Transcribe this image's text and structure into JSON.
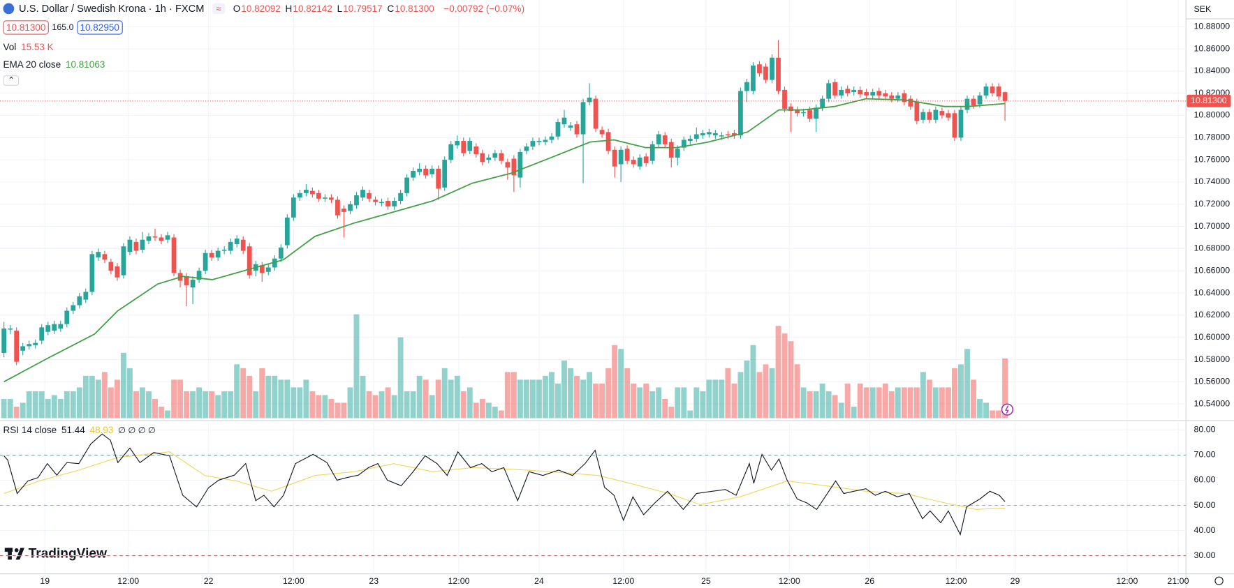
{
  "title": "U.S. Dollar / Swedish Krona · 1h · FXCM",
  "ohlc": [
    {
      "key": "O",
      "value": "10.82092"
    },
    {
      "key": "H",
      "value": "10.82142"
    },
    {
      "key": "L",
      "value": "10.79517"
    },
    {
      "key": "C",
      "value": "10.81300"
    }
  ],
  "change": "−0.00792 (−0.07%)",
  "sell": "10.81300",
  "spread": "165.0",
  "buy": "10.82950",
  "currency": "SEK",
  "logo": "TradingView",
  "chart_data": {
    "type": "candlestick",
    "up_color": "#26a69a",
    "down_color": "#ef5350",
    "xlim": [
      -0.625,
      187.75
    ],
    "xticks": [
      {
        "value": 6.5,
        "label": "19"
      },
      {
        "value": 19.75,
        "label": "12:00"
      },
      {
        "value": 32.5,
        "label": "22"
      },
      {
        "value": 46,
        "label": "12:00"
      },
      {
        "value": 58.75,
        "label": "23"
      },
      {
        "value": 72.25,
        "label": "12:00"
      },
      {
        "value": 85,
        "label": "24"
      },
      {
        "value": 98.4,
        "label": "12:00"
      },
      {
        "value": 111.5,
        "label": "25"
      },
      {
        "value": 124.75,
        "label": "12:00"
      },
      {
        "value": 137.5,
        "label": "26"
      },
      {
        "value": 151.25,
        "label": "12:00"
      },
      {
        "value": 160.6,
        "label": "29"
      },
      {
        "value": 178.4,
        "label": "12:00"
      },
      {
        "value": 186.5,
        "label": "21:00"
      }
    ],
    "ylim": [
      10.5272,
      10.904
    ],
    "yticks": [
      {
        "value": 10.88,
        "label": "10.88000"
      },
      {
        "value": 10.86,
        "label": "10.86000"
      },
      {
        "value": 10.84,
        "label": "10.84000"
      },
      {
        "value": 10.82,
        "label": "10.82000"
      },
      {
        "value": 10.8,
        "label": "10.80000"
      },
      {
        "value": 10.78,
        "label": "10.78000"
      },
      {
        "value": 10.76,
        "label": "10.76000"
      },
      {
        "value": 10.74,
        "label": "10.74000"
      },
      {
        "value": 10.72,
        "label": "10.72000"
      },
      {
        "value": 10.7,
        "label": "10.70000"
      },
      {
        "value": 10.68,
        "label": "10.68000"
      },
      {
        "value": 10.66,
        "label": "10.66000"
      },
      {
        "value": 10.64,
        "label": "10.64000"
      },
      {
        "value": 10.62,
        "label": "10.62000"
      },
      {
        "value": 10.6,
        "label": "10.60000"
      },
      {
        "value": 10.58,
        "label": "10.58000"
      },
      {
        "value": 10.56,
        "label": "10.56000"
      },
      {
        "value": 10.54,
        "label": "10.54000"
      }
    ],
    "current_price": {
      "value": 10.813,
      "label": "10.81300"
    },
    "open": [
      10.586,
      10.607,
      10.606,
      10.588,
      10.592,
      10.593,
      10.597,
      10.605,
      10.606,
      10.608,
      10.612,
      10.624,
      10.629,
      10.634,
      10.641,
      10.672,
      10.675,
      10.668,
      10.664,
      10.656,
      10.677,
      10.686,
      10.679,
      10.687,
      10.691,
      10.69,
      10.688,
      10.69,
      10.658,
      10.655,
      10.645,
      10.652,
      10.66,
      10.676,
      10.672,
      10.678,
      10.678,
      10.684,
      10.688,
      10.682,
      10.66,
      10.665,
      10.659,
      10.663,
      10.671,
      10.683,
      10.708,
      10.726,
      10.73,
      10.732,
      10.73,
      10.725,
      10.726,
      10.724,
      10.716,
      10.714,
      10.719,
      10.726,
      10.73,
      10.724,
      10.721,
      10.723,
      10.718,
      10.723,
      10.73,
      10.744,
      10.749,
      10.752,
      10.747,
      10.752,
      10.735,
      10.76,
      10.773,
      10.777,
      10.768,
      10.772,
      10.766,
      10.76,
      10.762,
      10.766,
      10.758,
      10.761,
      10.744,
      10.768,
      10.772,
      10.776,
      10.776,
      10.778,
      10.781,
      10.792,
      10.789,
      10.792,
      10.783,
      10.812,
      10.815,
      10.787,
      10.785,
      10.769,
      10.756,
      10.77,
      10.76,
      10.754,
      10.763,
      10.759,
      10.774,
      10.782,
      10.776,
      10.762,
      10.771,
      10.777,
      10.779,
      10.782,
      10.783,
      10.782,
      10.781,
      10.783,
      10.784,
      10.782,
      10.822,
      10.822,
      10.846,
      10.844,
      10.832,
      10.852,
      10.823,
      10.808,
      10.805,
      10.802,
      10.805,
      10.797,
      10.807,
      10.815,
      10.83,
      10.818,
      10.824,
      10.821,
      10.823,
      10.821,
      10.818,
      10.822,
      10.82,
      10.818,
      10.815,
      10.82,
      10.815,
      10.812,
      10.796,
      10.803,
      10.796,
      10.804,
      10.802,
      10.802,
      10.78,
      10.805,
      10.815,
      10.81,
      10.818,
      10.826,
      10.826,
      10.82092
    ],
    "high": [
      10.614,
      10.611,
      10.609,
      10.595,
      10.597,
      10.598,
      10.612,
      10.614,
      10.615,
      10.615,
      10.627,
      10.632,
      10.64,
      10.644,
      10.678,
      10.68,
      10.678,
      10.671,
      10.667,
      10.685,
      10.691,
      10.689,
      10.695,
      10.694,
      10.698,
      10.693,
      10.695,
      10.693,
      10.661,
      10.658,
      10.655,
      10.663,
      10.679,
      10.679,
      10.681,
      10.682,
      10.689,
      10.692,
      10.691,
      10.685,
      10.669,
      10.668,
      10.666,
      10.674,
      10.684,
      10.711,
      10.729,
      10.733,
      10.738,
      10.735,
      10.733,
      10.729,
      10.729,
      10.727,
      10.719,
      10.723,
      10.731,
      10.736,
      10.733,
      10.727,
      10.725,
      10.726,
      10.726,
      10.733,
      10.747,
      10.753,
      10.757,
      10.755,
      10.755,
      10.755,
      10.763,
      10.777,
      10.782,
      10.78,
      10.78,
      10.775,
      10.769,
      10.765,
      10.769,
      10.769,
      10.761,
      10.764,
      10.77,
      10.775,
      10.78,
      10.78,
      10.781,
      10.784,
      10.797,
      10.805,
      10.794,
      10.795,
      10.815,
      10.829,
      10.818,
      10.79,
      10.788,
      10.772,
      10.772,
      10.773,
      10.763,
      10.765,
      10.766,
      10.777,
      10.786,
      10.785,
      10.779,
      10.773,
      10.781,
      10.782,
      10.789,
      10.787,
      10.788,
      10.787,
      10.785,
      10.786,
      10.787,
      10.825,
      10.833,
      10.848,
      10.849,
      10.847,
      10.855,
      10.868,
      10.826,
      10.811,
      10.808,
      10.806,
      10.808,
      10.81,
      10.818,
      10.832,
      10.833,
      10.826,
      10.827,
      10.826,
      10.826,
      10.824,
      10.824,
      10.825,
      10.823,
      10.821,
      10.821,
      10.823,
      10.818,
      10.815,
      10.806,
      10.806,
      10.808,
      10.807,
      10.805,
      10.805,
      10.808,
      10.818,
      10.818,
      10.821,
      10.829,
      10.829,
      10.829,
      10.82142
    ],
    "low": [
      10.582,
      10.603,
      10.575,
      10.584,
      10.589,
      10.59,
      10.594,
      10.602,
      10.603,
      10.605,
      10.609,
      10.621,
      10.626,
      10.631,
      10.638,
      10.669,
      10.667,
      10.657,
      10.651,
      10.653,
      10.674,
      10.675,
      10.676,
      10.684,
      10.687,
      10.684,
      10.685,
      10.655,
      10.645,
      10.628,
      10.63,
      10.649,
      10.657,
      10.669,
      10.669,
      10.675,
      10.675,
      10.681,
      10.675,
      10.653,
      10.655,
      10.65,
      10.656,
      10.66,
      10.668,
      10.68,
      10.705,
      10.723,
      10.727,
      10.726,
      10.722,
      10.722,
      10.721,
      10.707,
      10.69,
      10.711,
      10.716,
      10.723,
      10.722,
      10.719,
      10.718,
      10.715,
      10.715,
      10.72,
      10.727,
      10.741,
      10.746,
      10.743,
      10.744,
      10.724,
      10.732,
      10.757,
      10.77,
      10.763,
      10.765,
      10.762,
      10.755,
      10.757,
      10.759,
      10.756,
      10.742,
      10.731,
      10.735,
      10.765,
      10.769,
      10.773,
      10.773,
      10.775,
      10.778,
      10.789,
      10.786,
      10.78,
      10.739,
      10.809,
      10.785,
      10.78,
      10.765,
      10.744,
      10.74,
      10.756,
      10.753,
      10.751,
      10.754,
      10.756,
      10.771,
      10.771,
      10.753,
      10.755,
      10.768,
      10.774,
      10.776,
      10.779,
      10.78,
      10.779,
      10.778,
      10.779,
      10.779,
      10.779,
      10.812,
      10.819,
      10.835,
      10.829,
      10.829,
      10.819,
      10.803,
      10.785,
      10.799,
      10.799,
      10.794,
      10.785,
      10.804,
      10.812,
      10.815,
      10.815,
      10.817,
      10.818,
      10.816,
      10.815,
      10.815,
      10.815,
      10.814,
      10.812,
      10.812,
      10.809,
      10.805,
      10.792,
      10.793,
      10.793,
      10.793,
      10.797,
      10.795,
      10.777,
      10.777,
      10.802,
      10.806,
      10.807,
      10.815,
      10.817,
      10.814,
      10.79517
    ],
    "close": [
      10.608,
      10.608,
      10.578,
      10.592,
      10.594,
      10.595,
      10.609,
      10.611,
      10.612,
      10.612,
      10.624,
      10.629,
      10.637,
      10.641,
      10.675,
      10.677,
      10.67,
      10.66,
      10.654,
      10.682,
      10.688,
      10.678,
      10.688,
      10.691,
      10.69,
      10.687,
      10.692,
      10.658,
      10.651,
      10.647,
      10.652,
      10.66,
      10.676,
      10.672,
      10.678,
      10.679,
      10.686,
      10.689,
      10.678,
      10.656,
      10.666,
      10.658,
      10.663,
      10.671,
      10.681,
      10.708,
      10.726,
      10.73,
      10.733,
      10.729,
      10.725,
      10.726,
      10.724,
      10.71,
      10.713,
      10.72,
      10.728,
      10.733,
      10.725,
      10.722,
      10.722,
      10.718,
      10.723,
      10.73,
      10.744,
      10.75,
      10.752,
      10.746,
      10.752,
      10.734,
      10.76,
      10.774,
      10.777,
      10.766,
      10.777,
      10.765,
      10.758,
      10.762,
      10.766,
      10.759,
      10.753,
      10.746,
      10.767,
      10.772,
      10.777,
      10.777,
      10.778,
      10.781,
      10.794,
      10.798,
      10.791,
      10.783,
      10.812,
      10.816,
      10.788,
      10.783,
      10.768,
      10.754,
      10.769,
      10.759,
      10.756,
      10.762,
      10.757,
      10.774,
      10.783,
      10.774,
      10.762,
      10.77,
      10.778,
      10.779,
      10.783,
      10.784,
      10.785,
      10.784,
      10.782,
      10.782,
      10.782,
      10.822,
      10.83,
      10.845,
      10.838,
      10.832,
      10.852,
      10.822,
      10.806,
      10.804,
      10.802,
      10.803,
      10.797,
      10.807,
      10.815,
      10.829,
      10.818,
      10.823,
      10.82,
      10.823,
      10.819,
      10.818,
      10.821,
      10.818,
      10.817,
      10.815,
      10.818,
      10.812,
      10.808,
      10.795,
      10.803,
      10.796,
      10.805,
      10.8,
      10.798,
      10.78,
      10.805,
      10.815,
      10.809,
      10.818,
      10.826,
      10.82,
      10.817,
      10.813
    ],
    "volume": {
      "name": "Vol",
      "last_label": "15.53 K",
      "ylim": [
        0,
        108.7
      ],
      "values": [
        5,
        5,
        3,
        4,
        7,
        7,
        7,
        5,
        6,
        5,
        7,
        7,
        8,
        11,
        11,
        10,
        12,
        8,
        10,
        17,
        13,
        7,
        8,
        7,
        5,
        3,
        2,
        10,
        10,
        7,
        7,
        8,
        7,
        7,
        6,
        7,
        7,
        14,
        13,
        11,
        7,
        13,
        11,
        11,
        10,
        10,
        8,
        8,
        10,
        7,
        6,
        6,
        5,
        4,
        4,
        8,
        27,
        11,
        7,
        6,
        7,
        8,
        6,
        21,
        7,
        7,
        11,
        10,
        6,
        10,
        13,
        10,
        11,
        7,
        8,
        4,
        5,
        4,
        3,
        2,
        12,
        12,
        10,
        10,
        10,
        10,
        11,
        12,
        9,
        15,
        13,
        11,
        10,
        12,
        9,
        9,
        13,
        19,
        18,
        13,
        9,
        8,
        9,
        7,
        8,
        5,
        3,
        8,
        8,
        2,
        8,
        7,
        10,
        10,
        10,
        13,
        9,
        12,
        15,
        19,
        12,
        14,
        13,
        24,
        22,
        20,
        14,
        8,
        7,
        7,
        9,
        7,
        6,
        4,
        9,
        3,
        9,
        8,
        8,
        8,
        9,
        7,
        8,
        8,
        8,
        8,
        12,
        10,
        8,
        8,
        8,
        13,
        14,
        18,
        10,
        5,
        4,
        2,
        2,
        15.53
      ]
    },
    "ema": {
      "name": "EMA 20 close",
      "color": "#43a047",
      "x": [
        0,
        6.9,
        14.4,
        18.1,
        24.4,
        28.4,
        33.1,
        38.1,
        44.4,
        49.4,
        55.6,
        61.9,
        68.1,
        74.4,
        80.6,
        86.9,
        93.1,
        96.9,
        101.9,
        106.9,
        111.9,
        118.1,
        123.1,
        126.9,
        131.9,
        136.9,
        143.1,
        149.4,
        153.1,
        159
      ],
      "values": [
        10.56,
        10.581,
        10.603,
        10.624,
        10.648,
        10.655,
        10.652,
        10.66,
        10.67,
        10.691,
        10.703,
        10.713,
        10.723,
        10.739,
        10.748,
        10.762,
        10.776,
        10.778,
        10.771,
        10.771,
        10.776,
        10.785,
        10.805,
        10.805,
        10.808,
        10.815,
        10.814,
        10.808,
        10.808,
        10.81063
      ]
    },
    "rsi": {
      "name": "RSI 14 close",
      "color": "#131722",
      "extra": "∅ ∅ ∅ ∅",
      "ylim": [
        22.8,
        83.1
      ],
      "yticks": [
        {
          "value": 80,
          "label": "80.00"
        },
        {
          "value": 70,
          "label": "70.00"
        },
        {
          "value": 60,
          "label": "60.00"
        },
        {
          "value": 50,
          "label": "50.00"
        },
        {
          "value": 40,
          "label": "40.00"
        },
        {
          "value": 30,
          "label": "30.00"
        }
      ],
      "bands": [
        70,
        50,
        30
      ],
      "x": [
        0,
        0.6,
        2.1,
        3.8,
        5.4,
        6.9,
        8.4,
        10,
        11.9,
        13.8,
        15.6,
        16.9,
        18.1,
        20,
        21.6,
        23.8,
        26.3,
        28.4,
        30.6,
        32.5,
        34.1,
        36.6,
        38.4,
        40,
        41.3,
        42.9,
        44.4,
        46.3,
        49.1,
        51.3,
        52.9,
        54.4,
        56.3,
        57.9,
        59.4,
        60.9,
        63.1,
        65,
        66.9,
        68.8,
        70.4,
        72.1,
        74.1,
        75.9,
        77.5,
        79.4,
        81.6,
        83.4,
        85.6,
        88.1,
        90.3,
        92.3,
        93.9,
        95.4,
        96.9,
        98.4,
        99.9,
        101.6,
        103.4,
        105.4,
        107.9,
        110,
        112.5,
        114.6,
        116.3,
        118.4,
        119.1,
        120.4,
        121.9,
        123.1,
        124.4,
        126,
        127.5,
        129.1,
        130.6,
        132.1,
        133.4,
        135,
        136.9,
        138.4,
        140,
        141.9,
        143.8,
        145.9,
        147.1,
        148.8,
        150,
        151.9,
        152.9,
        155,
        156.6,
        158.1,
        159
      ],
      "values": [
        69.7,
        68,
        54.7,
        59.7,
        61,
        66.6,
        62,
        67,
        66.6,
        74.4,
        78.4,
        75.9,
        67,
        72.8,
        67,
        71,
        69.7,
        54,
        49.4,
        57,
        60,
        62,
        66.6,
        51.9,
        54,
        49.4,
        54,
        66.6,
        70.3,
        67,
        60,
        61,
        62,
        65,
        66.6,
        60,
        57.8,
        63.4,
        69.7,
        66.6,
        61.9,
        71.3,
        65,
        66.6,
        63.4,
        65,
        51.9,
        63.4,
        61.9,
        64,
        61.9,
        66.6,
        71.9,
        57.2,
        54,
        44.1,
        53.4,
        46.3,
        51,
        55.6,
        48.4,
        54.7,
        55.6,
        56.3,
        54,
        66.6,
        58.8,
        70.3,
        64,
        68.4,
        60,
        52.5,
        51,
        48.4,
        54,
        59.7,
        54.7,
        55.6,
        56.6,
        54,
        55.6,
        53.4,
        54.7,
        44.7,
        47.8,
        43.1,
        47.8,
        38.4,
        49.4,
        52.5,
        55.6,
        54,
        51.44
      ],
      "ma": {
        "color": "#f5d556",
        "x": [
          0,
          5.6,
          11.9,
          18.1,
          26.3,
          31.9,
          36.9,
          42.5,
          49.4,
          55.6,
          61.9,
          68.1,
          74.4,
          80.6,
          86.9,
          94.4,
          99.4,
          105.6,
          110.6,
          116.9,
          124.4,
          130.6,
          136.9,
          143.1,
          149.4,
          154.4,
          159
        ],
        "values": [
          54.7,
          59.7,
          64,
          69,
          71.3,
          61.9,
          59.7,
          55.6,
          61.9,
          63.4,
          66.6,
          63.4,
          65,
          64.4,
          63.4,
          61.9,
          58.8,
          54.7,
          50.3,
          53.4,
          59.7,
          57.8,
          55.6,
          54.7,
          51,
          48.4,
          48.93
        ]
      }
    }
  }
}
